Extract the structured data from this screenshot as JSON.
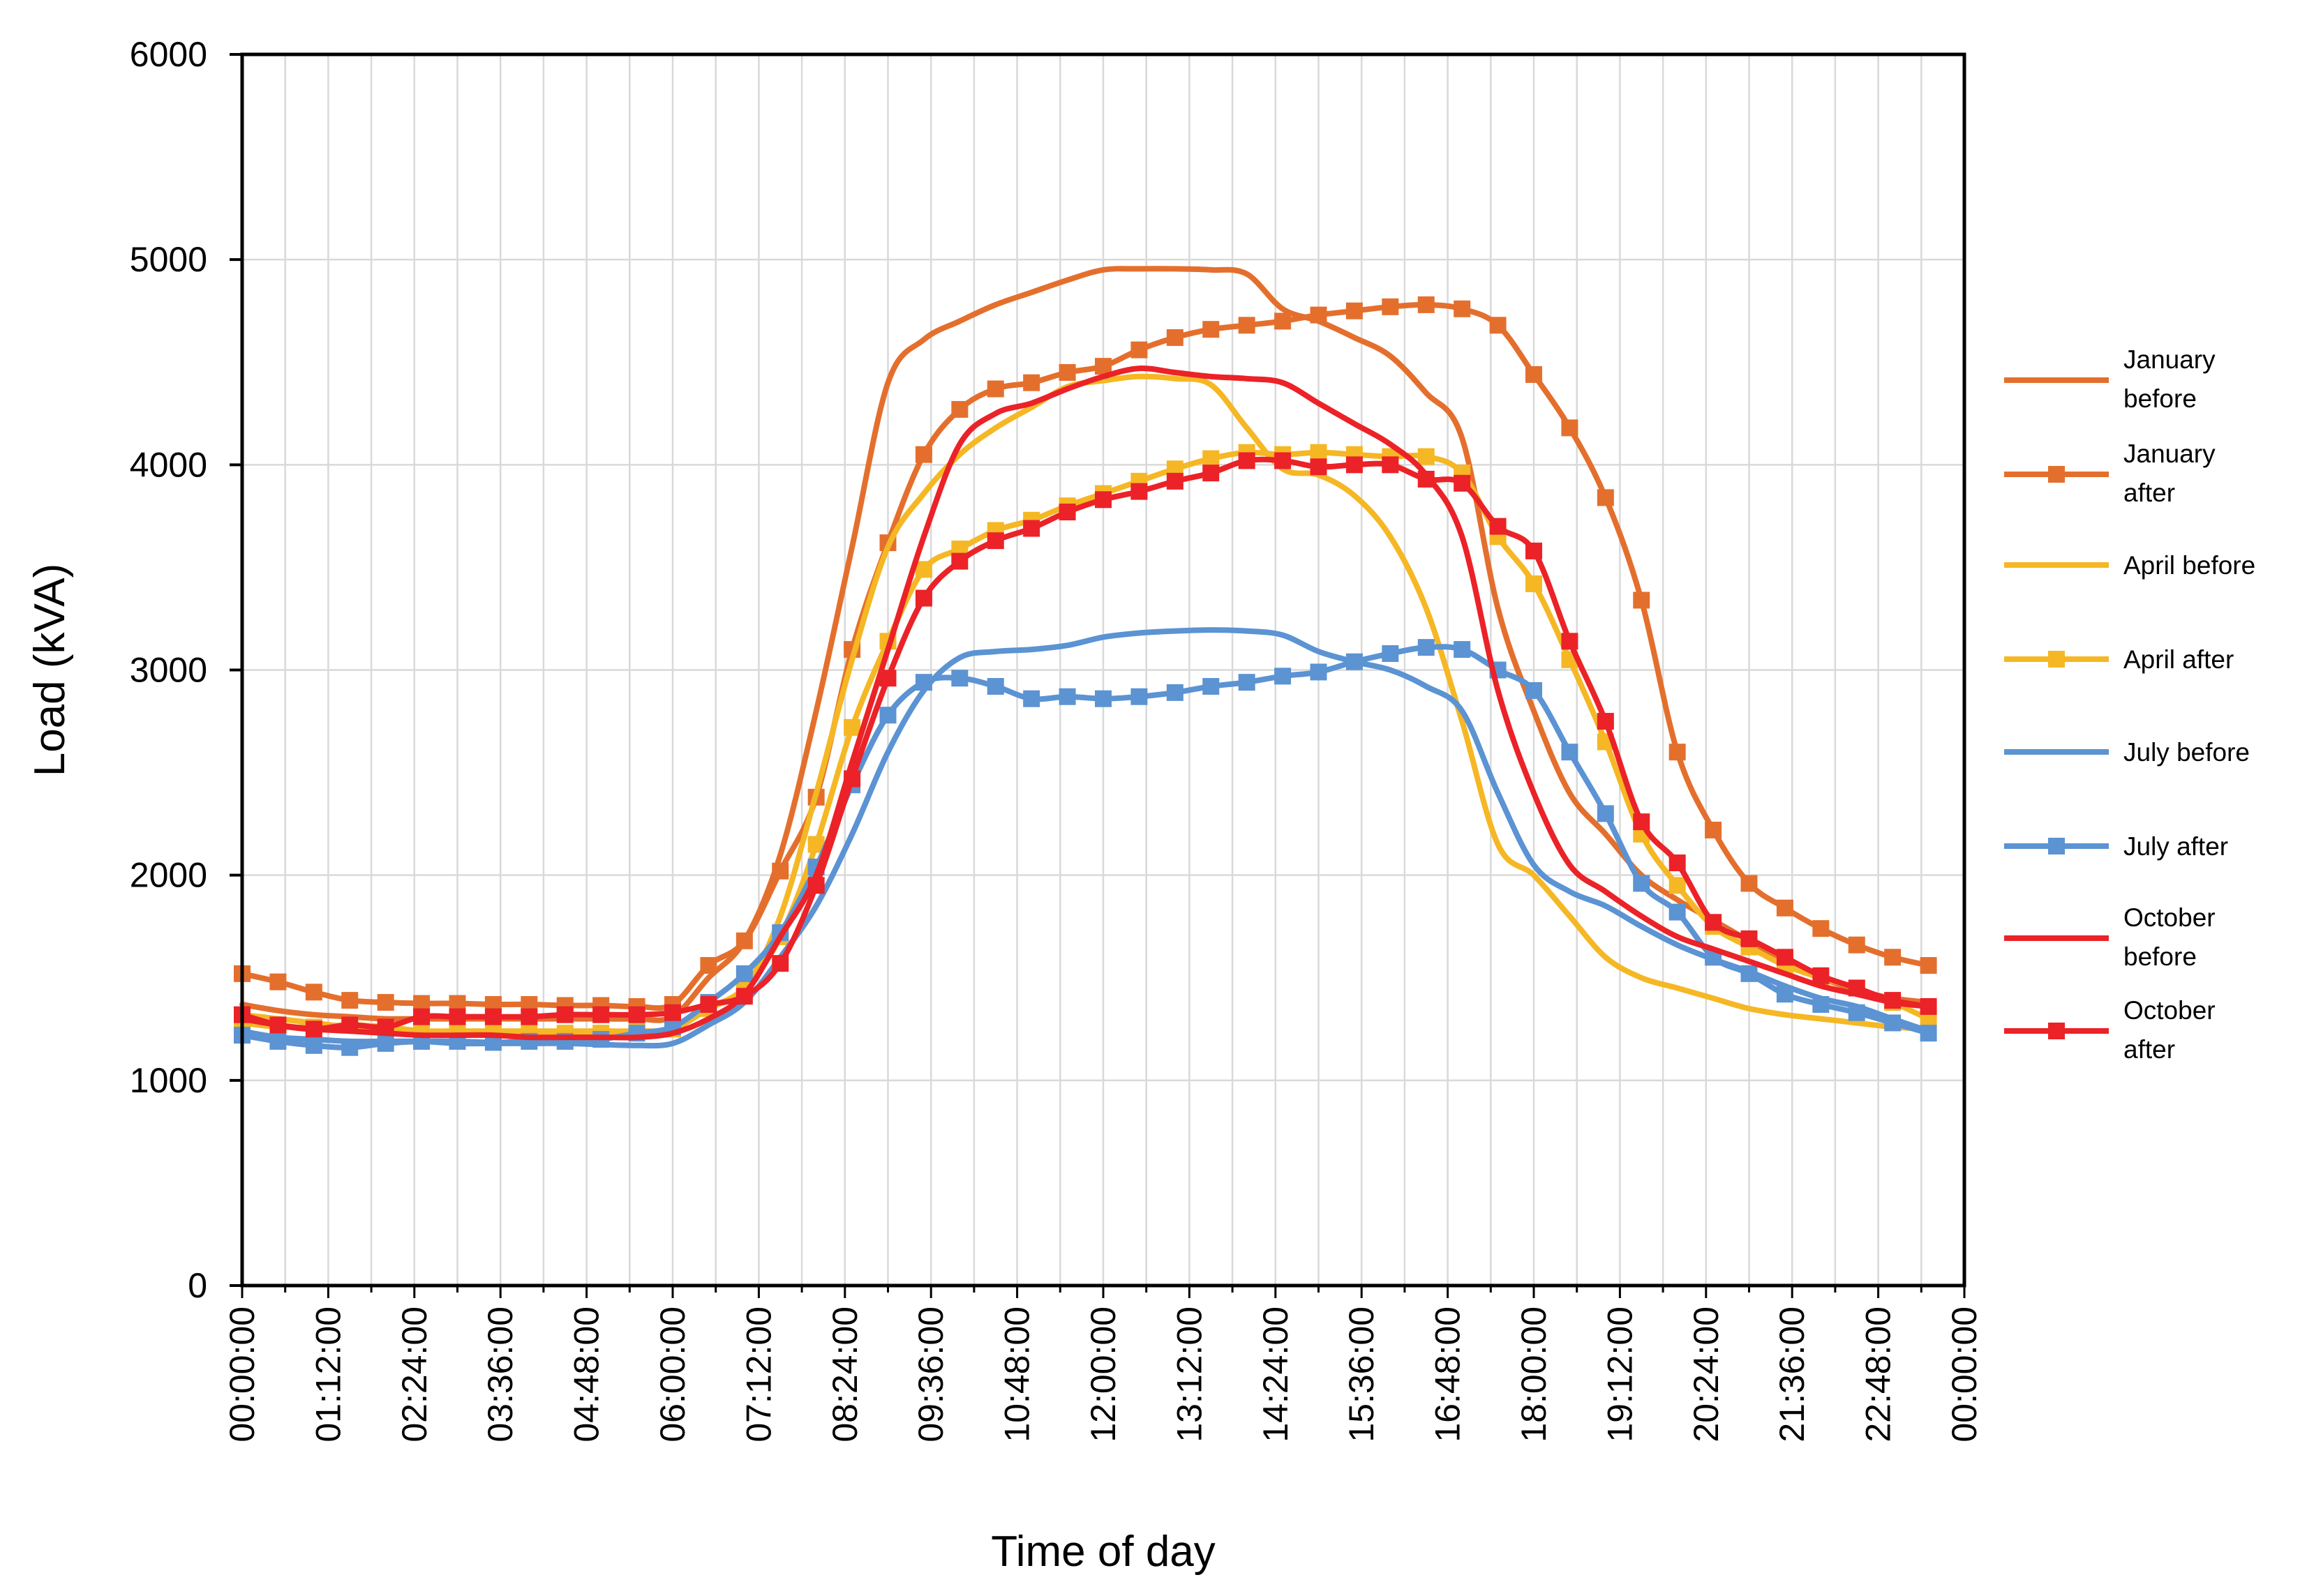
{
  "chart_data": {
    "type": "line",
    "title": "",
    "xlabel": "Time of day",
    "ylabel": "Load (kVA)",
    "ylim": [
      0,
      6000
    ],
    "xlim_hours": [
      0,
      24
    ],
    "grid": true,
    "legend_position": "right",
    "y_ticks": [
      "0",
      "1000",
      "2000",
      "3000",
      "4000",
      "5000",
      "6000"
    ],
    "x_ticks": [
      "00:00:00",
      "01:12:00",
      "02:24:00",
      "03:36:00",
      "04:48:00",
      "06:00:00",
      "07:12:00",
      "08:24:00",
      "09:36:00",
      "10:48:00",
      "12:00:00",
      "13:12:00",
      "14:24:00",
      "15:36:00",
      "16:48:00",
      "18:00:00",
      "19:12:00",
      "20:24:00",
      "21:36:00",
      "22:48:00",
      "00:00:00"
    ],
    "x_hours": [
      0,
      0.5,
      1,
      1.5,
      2,
      2.5,
      3,
      3.5,
      4,
      4.5,
      5,
      5.5,
      6,
      6.5,
      7,
      7.5,
      8,
      8.5,
      9,
      9.5,
      10,
      10.5,
      11,
      11.5,
      12,
      12.5,
      13,
      13.5,
      14,
      14.5,
      15,
      15.5,
      16,
      16.5,
      17,
      17.5,
      18,
      18.5,
      19,
      19.5,
      20,
      20.5,
      21,
      21.5,
      22,
      22.5,
      23,
      23.5
    ],
    "series": [
      {
        "name": "January before",
        "legend_lines": [
          "January",
          "before"
        ],
        "color": "#E46F2D",
        "marker": false,
        "values": [
          1370,
          1340,
          1320,
          1310,
          1300,
          1300,
          1300,
          1300,
          1300,
          1300,
          1300,
          1300,
          1310,
          1500,
          1680,
          2100,
          2800,
          3600,
          4400,
          4610,
          4700,
          4780,
          4840,
          4900,
          4950,
          4955,
          4955,
          4950,
          4930,
          4760,
          4700,
          4620,
          4530,
          4350,
          4130,
          3300,
          2800,
          2400,
          2200,
          2000,
          1880,
          1780,
          1680,
          1580,
          1500,
          1440,
          1400,
          1380
        ]
      },
      {
        "name": "January after",
        "legend_lines": [
          "January",
          "after"
        ],
        "color": "#E46F2D",
        "marker": true,
        "values": [
          1520,
          1480,
          1430,
          1390,
          1380,
          1375,
          1375,
          1370,
          1370,
          1365,
          1365,
          1360,
          1370,
          1560,
          1680,
          2020,
          2380,
          3100,
          3620,
          4050,
          4270,
          4370,
          4400,
          4450,
          4480,
          4560,
          4620,
          4660,
          4680,
          4700,
          4730,
          4750,
          4770,
          4780,
          4760,
          4680,
          4440,
          4180,
          3840,
          3340,
          2600,
          2220,
          1960,
          1840,
          1740,
          1660,
          1600,
          1560
        ]
      },
      {
        "name": "April before",
        "legend_lines": [
          "April before"
        ],
        "color": "#F5B724",
        "marker": false,
        "values": [
          1320,
          1300,
          1280,
          1260,
          1250,
          1240,
          1240,
          1240,
          1240,
          1240,
          1240,
          1240,
          1250,
          1350,
          1450,
          1800,
          2400,
          3050,
          3600,
          3860,
          4050,
          4180,
          4280,
          4380,
          4410,
          4430,
          4420,
          4390,
          4180,
          3980,
          3950,
          3850,
          3650,
          3300,
          2750,
          2150,
          2000,
          1800,
          1600,
          1500,
          1450,
          1400,
          1350,
          1320,
          1300,
          1280,
          1260,
          1250
        ]
      },
      {
        "name": "April after",
        "legend_lines": [
          "April after"
        ],
        "color": "#F5B724",
        "marker": true,
        "values": [
          1280,
          1260,
          1260,
          1270,
          1260,
          1240,
          1230,
          1230,
          1230,
          1230,
          1230,
          1240,
          1250,
          1350,
          1450,
          1700,
          2150,
          2720,
          3140,
          3490,
          3590,
          3680,
          3730,
          3800,
          3860,
          3920,
          3980,
          4030,
          4060,
          4050,
          4060,
          4050,
          4040,
          4040,
          3960,
          3650,
          3420,
          3050,
          2650,
          2200,
          1950,
          1750,
          1650,
          1560,
          1500,
          1450,
          1380,
          1300
        ]
      },
      {
        "name": "July before",
        "legend_lines": [
          "July before"
        ],
        "color": "#5B93D3",
        "marker": false,
        "values": [
          1240,
          1210,
          1200,
          1190,
          1190,
          1190,
          1180,
          1180,
          1180,
          1180,
          1175,
          1170,
          1180,
          1270,
          1380,
          1600,
          1850,
          2200,
          2600,
          2900,
          3060,
          3090,
          3100,
          3120,
          3160,
          3180,
          3190,
          3195,
          3190,
          3170,
          3090,
          3040,
          3000,
          2920,
          2800,
          2400,
          2050,
          1920,
          1850,
          1750,
          1660,
          1590,
          1530,
          1460,
          1400,
          1360,
          1300,
          1240
        ]
      },
      {
        "name": "July after",
        "legend_lines": [
          "July after"
        ],
        "color": "#5B93D3",
        "marker": true,
        "values": [
          1220,
          1190,
          1170,
          1160,
          1180,
          1190,
          1190,
          1185,
          1190,
          1190,
          1200,
          1230,
          1260,
          1380,
          1520,
          1720,
          2040,
          2440,
          2780,
          2940,
          2960,
          2920,
          2860,
          2870,
          2860,
          2870,
          2890,
          2920,
          2940,
          2970,
          2990,
          3040,
          3080,
          3110,
          3100,
          3000,
          2900,
          2600,
          2300,
          1960,
          1820,
          1600,
          1520,
          1420,
          1370,
          1330,
          1280,
          1230
        ]
      },
      {
        "name": "October before",
        "legend_lines": [
          "October",
          "before"
        ],
        "color": "#EB2227",
        "marker": false,
        "values": [
          1300,
          1270,
          1250,
          1240,
          1230,
          1220,
          1220,
          1220,
          1210,
          1210,
          1210,
          1210,
          1230,
          1300,
          1420,
          1700,
          2000,
          2550,
          3100,
          3650,
          4100,
          4250,
          4300,
          4370,
          4430,
          4470,
          4450,
          4430,
          4420,
          4400,
          4300,
          4200,
          4100,
          3950,
          3650,
          2900,
          2400,
          2050,
          1920,
          1800,
          1700,
          1640,
          1580,
          1520,
          1460,
          1420,
          1380,
          1360
        ]
      },
      {
        "name": "October after",
        "legend_lines": [
          "October",
          "after"
        ],
        "color": "#EB2227",
        "marker": true,
        "values": [
          1320,
          1270,
          1250,
          1270,
          1260,
          1310,
          1310,
          1310,
          1310,
          1320,
          1320,
          1320,
          1330,
          1370,
          1410,
          1570,
          1950,
          2470,
          2960,
          3350,
          3530,
          3630,
          3690,
          3770,
          3830,
          3870,
          3920,
          3960,
          4020,
          4020,
          3990,
          4000,
          4000,
          3930,
          3910,
          3700,
          3580,
          3140,
          2750,
          2260,
          2060,
          1770,
          1690,
          1600,
          1510,
          1450,
          1390,
          1360
        ]
      }
    ]
  }
}
